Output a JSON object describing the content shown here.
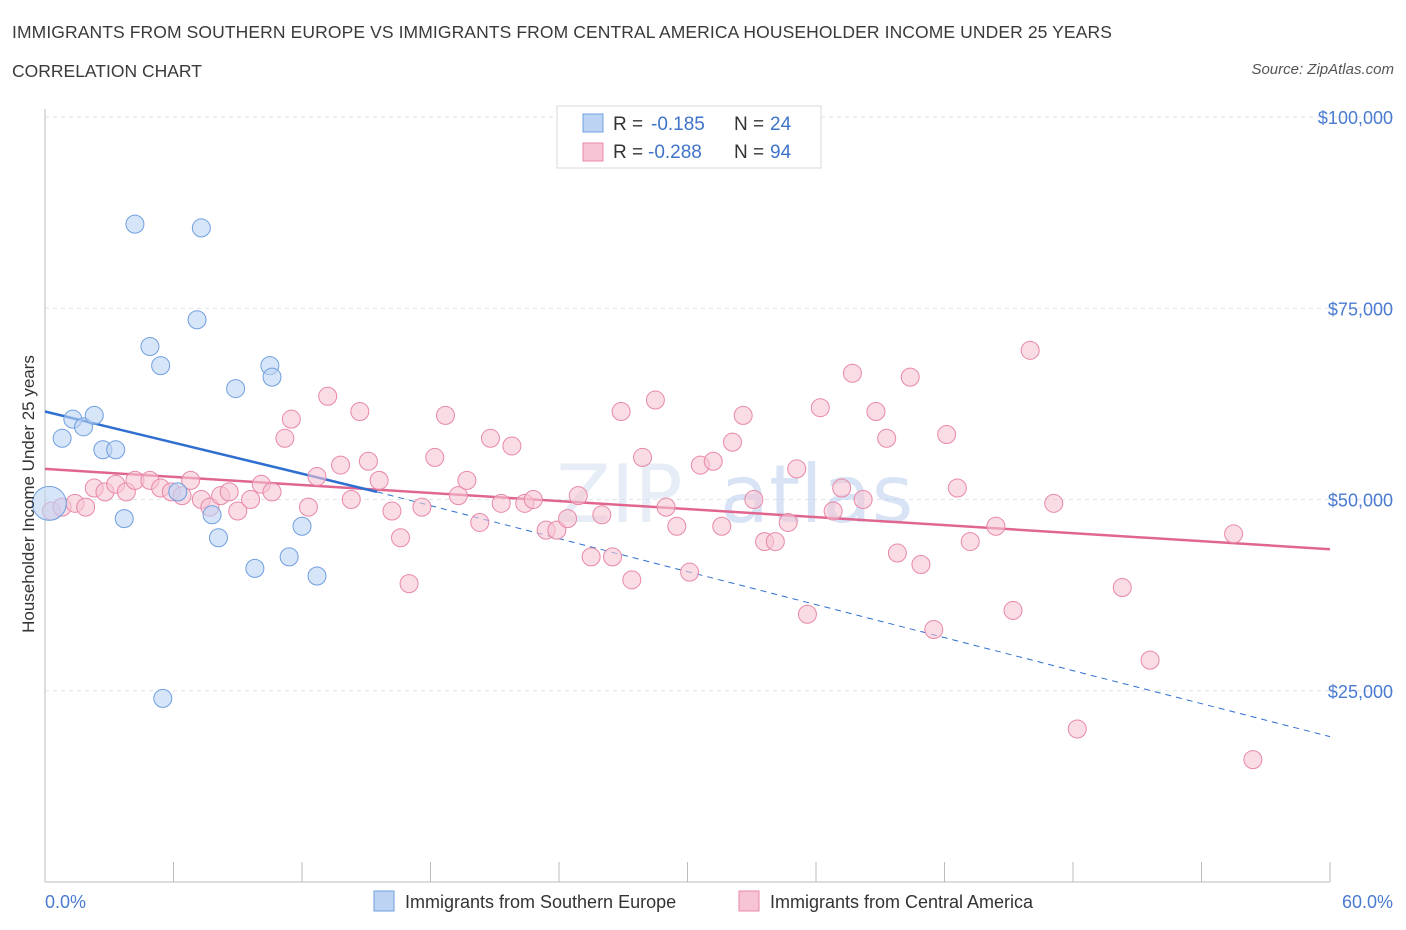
{
  "header": {
    "title": "IMMIGRANTS FROM SOUTHERN EUROPE VS IMMIGRANTS FROM CENTRAL AMERICA HOUSEHOLDER INCOME UNDER 25 YEARS",
    "subtitle": "CORRELATION CHART",
    "source": "Source: ZipAtlas.com"
  },
  "colors": {
    "blue": "#6f9fe0",
    "blue_fill": "#bcd3f4",
    "blue_line": "#2e6fd0",
    "pink": "#e888a8",
    "pink_fill": "#f6c4d4",
    "pink_line": "#e06690",
    "axis_text": "#4a7bd0",
    "grid": "#dde3ea"
  },
  "stats": {
    "blue": {
      "r_label": "R =",
      "r_value": "-0.185",
      "n_label": "N =",
      "n_value": "24"
    },
    "pink": {
      "r_label": "R =",
      "r_value": "-0.288",
      "n_label": "N =",
      "n_value": "94"
    }
  },
  "watermark": {
    "zip": "ZIP",
    "atlas": "atlas"
  },
  "chart_data": {
    "type": "scatter",
    "xlabel": "",
    "ylabel": "Householder Income Under 25 years",
    "x_tick_labels": [
      "0.0%",
      "60.0%"
    ],
    "y_tick_labels": [
      "$100,000",
      "$75,000",
      "$50,000",
      "$25,000"
    ],
    "y_ticks": [
      100000,
      75000,
      50000,
      25000
    ],
    "xlim": [
      0,
      60
    ],
    "ylim": [
      0,
      100000
    ],
    "grid": true,
    "legend_position": "bottom-center",
    "series": [
      {
        "name": "Immigrants from Southern Europe",
        "color": "#6f9fe0",
        "trend": {
          "x": [
            0,
            15.5
          ],
          "y": [
            61500,
            51000
          ],
          "dashed_extension_to": [
            60,
            19000
          ]
        },
        "points": [
          [
            0.2,
            49500
          ],
          [
            0.8,
            58000
          ],
          [
            1.3,
            60500
          ],
          [
            1.8,
            59500
          ],
          [
            2.3,
            61000
          ],
          [
            2.7,
            56500
          ],
          [
            3.3,
            56500
          ],
          [
            3.7,
            47500
          ],
          [
            4.2,
            86000
          ],
          [
            4.9,
            70000
          ],
          [
            5.4,
            67500
          ],
          [
            5.5,
            24000
          ],
          [
            6.2,
            51000
          ],
          [
            7.3,
            85500
          ],
          [
            7.1,
            73500
          ],
          [
            7.8,
            48000
          ],
          [
            8.1,
            45000
          ],
          [
            8.9,
            64500
          ],
          [
            9.8,
            41000
          ],
          [
            10.5,
            67500
          ],
          [
            10.6,
            66000
          ],
          [
            11.4,
            42500
          ],
          [
            12.0,
            46500
          ],
          [
            12.7,
            40000
          ]
        ]
      },
      {
        "name": "Immigrants from Central America",
        "color": "#e888a8",
        "trend": {
          "x": [
            0,
            60
          ],
          "y": [
            54000,
            43500
          ]
        },
        "points": [
          [
            0.3,
            48500
          ],
          [
            0.8,
            49000
          ],
          [
            1.4,
            49500
          ],
          [
            1.9,
            49000
          ],
          [
            2.3,
            51500
          ],
          [
            2.8,
            51000
          ],
          [
            3.3,
            52000
          ],
          [
            3.8,
            51000
          ],
          [
            4.2,
            52500
          ],
          [
            4.9,
            52500
          ],
          [
            5.4,
            51500
          ],
          [
            5.9,
            51000
          ],
          [
            6.4,
            50500
          ],
          [
            6.8,
            52500
          ],
          [
            7.3,
            50000
          ],
          [
            7.7,
            49000
          ],
          [
            8.2,
            50500
          ],
          [
            8.6,
            51000
          ],
          [
            9.0,
            48500
          ],
          [
            9.6,
            50000
          ],
          [
            10.1,
            52000
          ],
          [
            10.6,
            51000
          ],
          [
            11.2,
            58000
          ],
          [
            11.5,
            60500
          ],
          [
            12.3,
            49000
          ],
          [
            12.7,
            53000
          ],
          [
            13.2,
            63500
          ],
          [
            13.8,
            54500
          ],
          [
            14.3,
            50000
          ],
          [
            14.7,
            61500
          ],
          [
            15.1,
            55000
          ],
          [
            15.6,
            52500
          ],
          [
            16.2,
            48500
          ],
          [
            16.6,
            45000
          ],
          [
            17.0,
            39000
          ],
          [
            17.6,
            49000
          ],
          [
            18.2,
            55500
          ],
          [
            18.7,
            61000
          ],
          [
            19.3,
            50500
          ],
          [
            19.7,
            52500
          ],
          [
            20.3,
            47000
          ],
          [
            20.8,
            58000
          ],
          [
            21.3,
            49500
          ],
          [
            21.8,
            57000
          ],
          [
            22.4,
            49500
          ],
          [
            22.8,
            50000
          ],
          [
            23.4,
            46000
          ],
          [
            23.9,
            46000
          ],
          [
            24.4,
            47500
          ],
          [
            24.9,
            50500
          ],
          [
            25.5,
            42500
          ],
          [
            26.0,
            48000
          ],
          [
            26.5,
            42500
          ],
          [
            26.9,
            61500
          ],
          [
            27.4,
            39500
          ],
          [
            27.9,
            55500
          ],
          [
            28.5,
            63000
          ],
          [
            29.0,
            49000
          ],
          [
            29.5,
            46500
          ],
          [
            30.1,
            40500
          ],
          [
            30.6,
            54500
          ],
          [
            31.2,
            55000
          ],
          [
            31.6,
            46500
          ],
          [
            32.1,
            57500
          ],
          [
            32.6,
            61000
          ],
          [
            33.1,
            50000
          ],
          [
            33.6,
            44500
          ],
          [
            34.1,
            44500
          ],
          [
            34.7,
            47000
          ],
          [
            35.1,
            54000
          ],
          [
            35.6,
            35000
          ],
          [
            36.2,
            62000
          ],
          [
            36.8,
            48500
          ],
          [
            37.2,
            51500
          ],
          [
            37.7,
            66500
          ],
          [
            38.2,
            50000
          ],
          [
            38.8,
            61500
          ],
          [
            39.3,
            58000
          ],
          [
            39.8,
            43000
          ],
          [
            40.4,
            66000
          ],
          [
            40.9,
            41500
          ],
          [
            41.5,
            33000
          ],
          [
            42.1,
            58500
          ],
          [
            42.6,
            51500
          ],
          [
            43.2,
            44500
          ],
          [
            44.4,
            46500
          ],
          [
            45.2,
            35500
          ],
          [
            46.0,
            69500
          ],
          [
            47.1,
            49500
          ],
          [
            48.2,
            20000
          ],
          [
            50.3,
            38500
          ],
          [
            51.6,
            29000
          ],
          [
            55.5,
            45500
          ],
          [
            56.4,
            16000
          ]
        ]
      }
    ]
  },
  "legend": {
    "items": [
      {
        "label": "Immigrants from Southern Europe"
      },
      {
        "label": "Immigrants from Central America"
      }
    ]
  }
}
